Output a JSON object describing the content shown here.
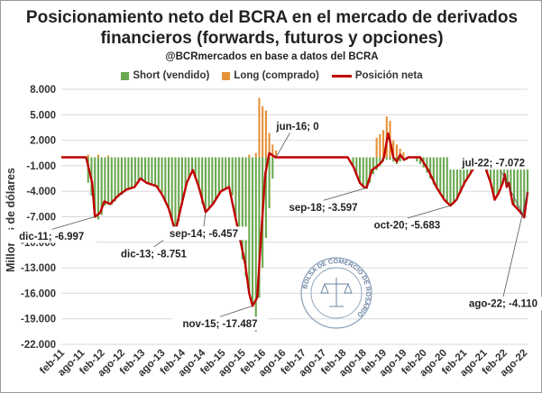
{
  "header": {
    "title_line1": "Posicionamiento neto del BCRA en el mercado de derivados",
    "title_line2": "financieros (forwards, futuros y opciones)",
    "subtitle": "@BCRmercados en base a datos del BCRA"
  },
  "colors": {
    "short": "#6aa84f",
    "long": "#e69138",
    "net": "#c00000",
    "grid": "#d9d9d9"
  },
  "chart_data": {
    "type": "bar",
    "ylabel": "Millones de dólares",
    "ylim": [
      -22000,
      8000
    ],
    "yticks": [
      8000,
      5000,
      2000,
      -1000,
      -4000,
      -7000,
      -10000,
      -13000,
      -16000,
      -19000,
      -22000
    ],
    "ytick_labels": [
      "8.000",
      "5.000",
      "2.000",
      "-1.000",
      "-4.000",
      "-7.000",
      "-10.000",
      "-13.000",
      "-16.000",
      "-19.000",
      "-22.000"
    ],
    "xlim": [
      2011.083,
      2022.667
    ],
    "xticks": [
      2011.083,
      2011.583,
      2012.083,
      2012.583,
      2013.083,
      2013.583,
      2014.083,
      2014.583,
      2015.083,
      2015.583,
      2016.083,
      2016.583,
      2017.083,
      2017.583,
      2018.083,
      2018.583,
      2019.083,
      2019.583,
      2020.083,
      2020.583,
      2021.083,
      2021.583,
      2022.083,
      2022.583
    ],
    "xtick_labels": [
      "feb-11",
      "ago-11",
      "feb-12",
      "ago-12",
      "feb-13",
      "ago-13",
      "feb-14",
      "ago-14",
      "feb-15",
      "ago-15",
      "feb-16",
      "ago-16",
      "feb-17",
      "ago-17",
      "feb-18",
      "ago-18",
      "feb-19",
      "ago-19",
      "feb-20",
      "ago-20",
      "feb-21",
      "ago-21",
      "feb-22",
      "ago-22"
    ],
    "legend": [
      "Short (vendido)",
      "Long (comprado)",
      "Posición neta"
    ],
    "legend_position": "top",
    "grid": "horizontal",
    "series": [
      {
        "name": "Posición neta",
        "kind": "line",
        "points": [
          [
            2011.083,
            0
          ],
          [
            2011.7,
            0
          ],
          [
            2011.85,
            -3000
          ],
          [
            2011.917,
            -6997
          ],
          [
            2012.05,
            -6500
          ],
          [
            2012.15,
            -5200
          ],
          [
            2012.3,
            -5500
          ],
          [
            2012.5,
            -4500
          ],
          [
            2012.7,
            -3800
          ],
          [
            2012.9,
            -3500
          ],
          [
            2013.05,
            -2500
          ],
          [
            2013.2,
            -3000
          ],
          [
            2013.45,
            -3400
          ],
          [
            2013.6,
            -4500
          ],
          [
            2013.75,
            -6000
          ],
          [
            2013.917,
            -8751
          ],
          [
            2014.05,
            -6000
          ],
          [
            2014.2,
            -3000
          ],
          [
            2014.35,
            -1500
          ],
          [
            2014.5,
            -3500
          ],
          [
            2014.667,
            -6457
          ],
          [
            2014.85,
            -5500
          ],
          [
            2015.05,
            -4000
          ],
          [
            2015.25,
            -3500
          ],
          [
            2015.45,
            -8000
          ],
          [
            2015.65,
            -12500
          ],
          [
            2015.75,
            -16000
          ],
          [
            2015.833,
            -17487
          ],
          [
            2015.95,
            -16500
          ],
          [
            2016.05,
            -9000
          ],
          [
            2016.15,
            -2000
          ],
          [
            2016.25,
            500
          ],
          [
            2016.4,
            0
          ],
          [
            2016.417,
            0
          ],
          [
            2018.2,
            0
          ],
          [
            2018.35,
            -1200
          ],
          [
            2018.5,
            -3000
          ],
          [
            2018.6,
            -3500
          ],
          [
            2018.667,
            -3597
          ],
          [
            2018.8,
            -1500
          ],
          [
            2018.95,
            -1000
          ],
          [
            2019.05,
            -500
          ],
          [
            2019.1,
            0
          ],
          [
            2019.2,
            2800
          ],
          [
            2019.27,
            1500
          ],
          [
            2019.33,
            0
          ],
          [
            2019.42,
            -500
          ],
          [
            2019.5,
            300
          ],
          [
            2019.6,
            -300
          ],
          [
            2019.7,
            0
          ],
          [
            2020.0,
            0
          ],
          [
            2020.2,
            -1500
          ],
          [
            2020.4,
            -3500
          ],
          [
            2020.6,
            -5000
          ],
          [
            2020.75,
            -5683
          ],
          [
            2020.9,
            -5000
          ],
          [
            2021.1,
            -3000
          ],
          [
            2021.3,
            -1500
          ],
          [
            2021.5,
            -500
          ],
          [
            2021.6,
            -1000
          ],
          [
            2021.75,
            -3000
          ],
          [
            2021.85,
            -5000
          ],
          [
            2021.95,
            -4200
          ],
          [
            2022.05,
            -3000
          ],
          [
            2022.1,
            -2000
          ],
          [
            2022.15,
            -3500
          ],
          [
            2022.2,
            -3000
          ],
          [
            2022.3,
            -5500
          ],
          [
            2022.4,
            -6000
          ],
          [
            2022.5,
            -6500
          ],
          [
            2022.583,
            -7072
          ],
          [
            2022.667,
            -4110
          ]
        ]
      },
      {
        "name": "Long (comprado)",
        "kind": "bar",
        "points": [
          [
            2011.75,
            300
          ],
          [
            2012.0,
            300
          ],
          [
            2012.25,
            200
          ],
          [
            2015.75,
            300
          ],
          [
            2015.917,
            500
          ],
          [
            2016.0,
            7000
          ],
          [
            2016.083,
            6000
          ],
          [
            2016.167,
            5500
          ],
          [
            2016.25,
            3000
          ],
          [
            2016.333,
            1500
          ],
          [
            2016.417,
            800
          ],
          [
            2018.917,
            2300
          ],
          [
            2019.0,
            2700
          ],
          [
            2019.083,
            3200
          ],
          [
            2019.167,
            4800
          ],
          [
            2019.25,
            4300
          ],
          [
            2019.333,
            2000
          ],
          [
            2019.417,
            1500
          ],
          [
            2019.5,
            1000
          ],
          [
            2019.583,
            600
          ]
        ]
      },
      {
        "name": "Short (vendido)",
        "kind": "bar",
        "points": [
          [
            2011.75,
            -3000
          ],
          [
            2011.833,
            -4500
          ],
          [
            2011.917,
            -7000
          ],
          [
            2012.0,
            -7300
          ],
          [
            2012.083,
            -6800
          ],
          [
            2012.167,
            -5700
          ],
          [
            2012.25,
            -5600
          ],
          [
            2012.333,
            -5600
          ],
          [
            2012.417,
            -5200
          ],
          [
            2012.5,
            -4700
          ],
          [
            2012.583,
            -4400
          ],
          [
            2012.667,
            -4100
          ],
          [
            2012.75,
            -3800
          ],
          [
            2012.833,
            -3600
          ],
          [
            2012.917,
            -3500
          ],
          [
            2013.0,
            -3000
          ],
          [
            2013.083,
            -2600
          ],
          [
            2013.167,
            -2900
          ],
          [
            2013.25,
            -3100
          ],
          [
            2013.333,
            -3300
          ],
          [
            2013.417,
            -3400
          ],
          [
            2013.5,
            -3600
          ],
          [
            2013.583,
            -4200
          ],
          [
            2013.667,
            -5200
          ],
          [
            2013.75,
            -6100
          ],
          [
            2013.833,
            -7500
          ],
          [
            2013.917,
            -8800
          ],
          [
            2014.0,
            -7500
          ],
          [
            2014.083,
            -5600
          ],
          [
            2014.167,
            -3700
          ],
          [
            2014.25,
            -2500
          ],
          [
            2014.333,
            -1800
          ],
          [
            2014.417,
            -2300
          ],
          [
            2014.5,
            -3800
          ],
          [
            2014.583,
            -5500
          ],
          [
            2014.667,
            -6500
          ],
          [
            2014.75,
            -6200
          ],
          [
            2014.833,
            -5600
          ],
          [
            2014.917,
            -5000
          ],
          [
            2015.0,
            -4400
          ],
          [
            2015.083,
            -4000
          ],
          [
            2015.167,
            -3700
          ],
          [
            2015.25,
            -3500
          ],
          [
            2015.333,
            -4500
          ],
          [
            2015.417,
            -7000
          ],
          [
            2015.5,
            -9500
          ],
          [
            2015.583,
            -12000
          ],
          [
            2015.667,
            -14000
          ],
          [
            2015.75,
            -16000
          ],
          [
            2015.833,
            -17500
          ],
          [
            2015.917,
            -20500
          ],
          [
            2016.0,
            -16500
          ],
          [
            2016.083,
            -13000
          ],
          [
            2016.167,
            -9500
          ],
          [
            2016.25,
            -6000
          ],
          [
            2016.333,
            -2500
          ],
          [
            2018.333,
            -1000
          ],
          [
            2018.417,
            -2000
          ],
          [
            2018.5,
            -3000
          ],
          [
            2018.583,
            -3400
          ],
          [
            2018.667,
            -3600
          ],
          [
            2018.75,
            -3000
          ],
          [
            2018.833,
            -2000
          ],
          [
            2018.917,
            -1500
          ],
          [
            2019.0,
            -1000
          ],
          [
            2019.083,
            -500
          ],
          [
            2019.167,
            -300
          ],
          [
            2019.25,
            -300
          ],
          [
            2019.333,
            -500
          ],
          [
            2019.417,
            -800
          ],
          [
            2019.5,
            -500
          ],
          [
            2019.583,
            -400
          ],
          [
            2019.667,
            -300
          ],
          [
            2019.917,
            -500
          ],
          [
            2020.0,
            -800
          ],
          [
            2020.083,
            -1200
          ],
          [
            2020.167,
            -1800
          ],
          [
            2020.25,
            -2500
          ],
          [
            2020.333,
            -3200
          ],
          [
            2020.417,
            -3800
          ],
          [
            2020.5,
            -4300
          ],
          [
            2020.583,
            -4800
          ],
          [
            2020.667,
            -5200
          ],
          [
            2020.75,
            -5700
          ],
          [
            2020.833,
            -5500
          ],
          [
            2020.917,
            -5000
          ],
          [
            2021.0,
            -4200
          ],
          [
            2021.083,
            -3400
          ],
          [
            2021.167,
            -2600
          ],
          [
            2021.25,
            -2000
          ],
          [
            2021.333,
            -1400
          ],
          [
            2021.417,
            -900
          ],
          [
            2021.5,
            -600
          ],
          [
            2021.583,
            -900
          ],
          [
            2021.667,
            -2000
          ],
          [
            2021.75,
            -3200
          ],
          [
            2021.833,
            -4800
          ],
          [
            2021.917,
            -4500
          ],
          [
            2022.0,
            -3500
          ],
          [
            2022.083,
            -2500
          ],
          [
            2022.167,
            -3500
          ],
          [
            2022.25,
            -4500
          ],
          [
            2022.333,
            -5600
          ],
          [
            2022.417,
            -6000
          ],
          [
            2022.5,
            -6700
          ],
          [
            2022.583,
            -7100
          ],
          [
            2022.667,
            -4200
          ]
        ]
      }
    ],
    "annotations": [
      {
        "text": "dic-11; -6.997",
        "x": 2011.917,
        "y": -6997,
        "place": "below-left"
      },
      {
        "text": "dic-13; -8.751",
        "x": 2013.917,
        "y": -8751,
        "place": "below-left"
      },
      {
        "text": "sep-14; -6.457",
        "x": 2014.667,
        "y": -6457,
        "place": "below"
      },
      {
        "text": "nov-15; -17.487",
        "x": 2015.833,
        "y": -17487,
        "place": "below"
      },
      {
        "text": "jun-16; 0",
        "x": 2016.417,
        "y": 0,
        "place": "above-right"
      },
      {
        "text": "sep-18; -3.597",
        "x": 2018.667,
        "y": -3597,
        "place": "below-left"
      },
      {
        "text": "oct-20; -5.683",
        "x": 2020.75,
        "y": -5683,
        "place": "below-left"
      },
      {
        "text": "jul-22; -7.072",
        "x": 2022.583,
        "y": -7072,
        "place": "above-left"
      },
      {
        "text": "ago-22; -4.110",
        "x": 2022.667,
        "y": -4110,
        "place": "below-left"
      }
    ]
  },
  "watermark": {
    "text": "BOLSA DE COMERCIO DE ROSARIO"
  }
}
